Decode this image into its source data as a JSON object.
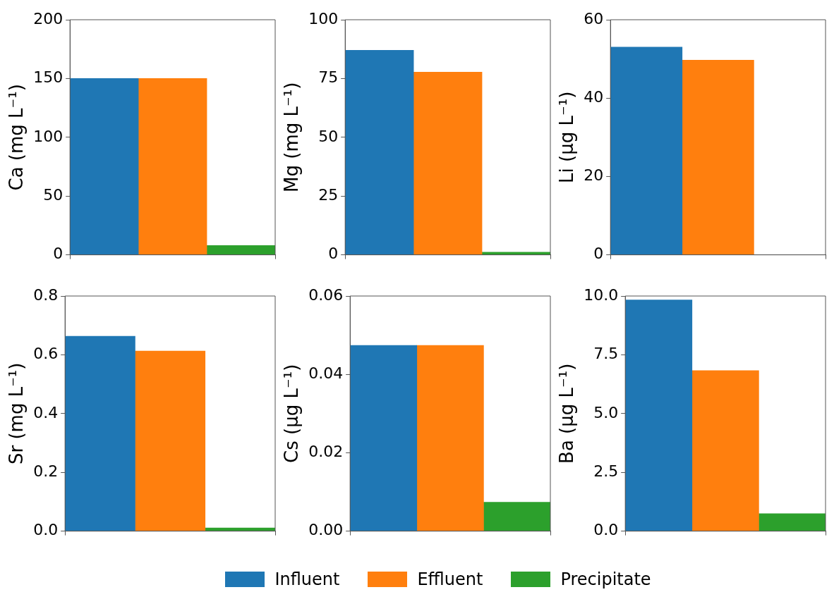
{
  "chart_data": [
    {
      "type": "bar",
      "ylabel": "Ca (mg L⁻¹)",
      "categories": [
        null
      ],
      "ylim": [
        0,
        200
      ],
      "yticks": [
        0,
        50,
        100,
        150,
        200
      ],
      "grid": false,
      "legend": "bottom",
      "series": [
        {
          "name": "Influent",
          "color": "#1f77b4",
          "values": [
            150
          ]
        },
        {
          "name": "Effluent",
          "color": "#ff7f0e",
          "values": [
            150
          ]
        },
        {
          "name": "Precipitate",
          "color": "#2ca02c",
          "values": [
            8
          ]
        }
      ]
    },
    {
      "type": "bar",
      "ylabel": "Mg (mg L⁻¹)",
      "categories": [
        null
      ],
      "ylim": [
        0,
        100
      ],
      "yticks": [
        0,
        25,
        50,
        75,
        100
      ],
      "grid": false,
      "series": [
        {
          "color": "#1f77b4",
          "values": [
            87
          ]
        },
        {
          "color": "#ff7f0e",
          "values": [
            77.7
          ]
        },
        {
          "color": "#2ca02c",
          "values": [
            1.1
          ]
        }
      ]
    },
    {
      "type": "bar",
      "ylabel": "Li (μg L⁻¹)",
      "categories": [
        null
      ],
      "ylim": [
        0,
        60
      ],
      "yticks": [
        0,
        20,
        40,
        60
      ],
      "grid": false,
      "series": [
        {
          "color": "#1f77b4",
          "values": [
            53
          ]
        },
        {
          "color": "#ff7f0e",
          "values": [
            49.7
          ]
        },
        {
          "color": "#2ca02c",
          "values": [
            null
          ]
        }
      ]
    },
    {
      "type": "bar",
      "ylabel": "Sr (mg L⁻¹)",
      "categories": [
        null
      ],
      "ylim": [
        0,
        0.8
      ],
      "yticks": [
        {
          "value": 0,
          "label": "0.0"
        },
        0.2,
        0.4,
        0.6,
        0.8
      ],
      "grid": false,
      "series": [
        {
          "color": "#1f77b4",
          "values": [
            0.663
          ]
        },
        {
          "color": "#ff7f0e",
          "values": [
            0.613
          ]
        },
        {
          "color": "#2ca02c",
          "values": [
            0.011
          ]
        }
      ]
    },
    {
      "type": "bar",
      "ylabel": "Cs (μg L⁻¹)",
      "categories": [
        null
      ],
      "ylim": [
        0,
        0.06
      ],
      "yticks": [
        {
          "value": 0,
          "label": "0.00"
        },
        0.02,
        0.04,
        0.06
      ],
      "grid": false,
      "series": [
        {
          "color": "#1f77b4",
          "values": [
            0.0474
          ]
        },
        {
          "color": "#ff7f0e",
          "values": [
            0.0474
          ]
        },
        {
          "color": "#2ca02c",
          "values": [
            0.0074
          ]
        }
      ]
    },
    {
      "type": "bar",
      "ylabel": "Ba (μg L⁻¹)",
      "categories": [
        null
      ],
      "ylim": [
        0,
        10
      ],
      "yticks": [
        {
          "value": 0,
          "label": "0.0"
        },
        2.5,
        {
          "value": 5,
          "label": "5.0"
        },
        7.5,
        {
          "value": 10,
          "label": "10.0"
        }
      ],
      "grid": false,
      "series": [
        {
          "color": "#1f77b4",
          "values": [
            9.83
          ]
        },
        {
          "color": "#ff7f0e",
          "values": [
            6.83
          ]
        },
        {
          "color": "#2ca02c",
          "values": [
            0.74
          ]
        }
      ]
    }
  ]
}
